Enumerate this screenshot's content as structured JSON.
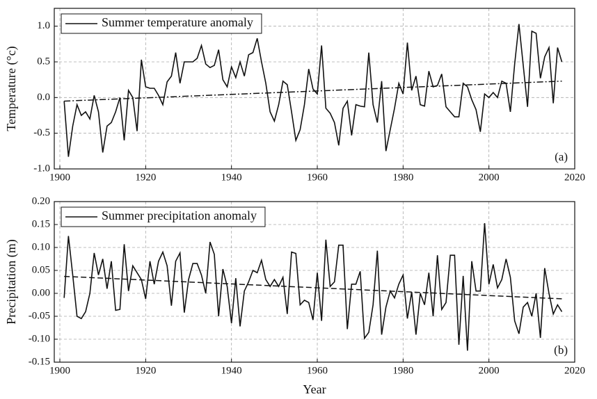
{
  "chart_data": [
    {
      "type": "line",
      "y_label": "Temperature (°c)",
      "annotation": "(a)",
      "x": [
        1901,
        1902,
        1903,
        1904,
        1905,
        1906,
        1907,
        1908,
        1909,
        1910,
        1911,
        1912,
        1913,
        1914,
        1915,
        1916,
        1917,
        1918,
        1919,
        1920,
        1921,
        1922,
        1923,
        1924,
        1925,
        1926,
        1927,
        1928,
        1929,
        1930,
        1931,
        1932,
        1933,
        1934,
        1935,
        1936,
        1937,
        1938,
        1939,
        1940,
        1941,
        1942,
        1943,
        1944,
        1945,
        1946,
        1947,
        1948,
        1949,
        1950,
        1951,
        1952,
        1953,
        1954,
        1955,
        1956,
        1957,
        1958,
        1959,
        1960,
        1961,
        1962,
        1963,
        1964,
        1965,
        1966,
        1967,
        1968,
        1969,
        1970,
        1971,
        1972,
        1973,
        1974,
        1975,
        1976,
        1977,
        1978,
        1979,
        1980,
        1981,
        1982,
        1983,
        1984,
        1985,
        1986,
        1987,
        1988,
        1989,
        1990,
        1991,
        1992,
        1993,
        1994,
        1995,
        1996,
        1997,
        1998,
        1999,
        2000,
        2001,
        2002,
        2003,
        2004,
        2005,
        2006,
        2007,
        2008,
        2009,
        2010,
        2011,
        2012,
        2013,
        2014,
        2015,
        2016,
        2017
      ],
      "series": [
        {
          "name": "Summer temperature anomaly",
          "color": "#111111",
          "values": [
            -0.05,
            -0.83,
            -0.4,
            -0.1,
            -0.25,
            -0.2,
            -0.3,
            0.03,
            -0.2,
            -0.77,
            -0.4,
            -0.35,
            -0.2,
            0.0,
            -0.6,
            0.1,
            0.0,
            -0.47,
            0.53,
            0.15,
            0.13,
            0.13,
            0.03,
            -0.1,
            0.22,
            0.3,
            0.63,
            0.2,
            0.5,
            0.5,
            0.5,
            0.55,
            0.73,
            0.47,
            0.42,
            0.45,
            0.67,
            0.25,
            0.15,
            0.43,
            0.28,
            0.5,
            0.3,
            0.6,
            0.63,
            0.83,
            0.5,
            0.2,
            -0.2,
            -0.33,
            -0.1,
            0.23,
            0.18,
            -0.2,
            -0.6,
            -0.45,
            -0.1,
            0.4,
            0.12,
            0.05,
            0.73,
            -0.15,
            -0.22,
            -0.35,
            -0.67,
            -0.15,
            -0.05,
            -0.53,
            -0.1,
            -0.12,
            -0.13,
            0.63,
            -0.1,
            -0.35,
            0.23,
            -0.75,
            -0.45,
            -0.15,
            0.2,
            0.05,
            0.77,
            0.1,
            0.3,
            -0.1,
            -0.12,
            0.37,
            0.15,
            0.17,
            0.33,
            -0.13,
            -0.2,
            -0.27,
            -0.27,
            0.2,
            0.15,
            -0.03,
            -0.17,
            -0.48,
            0.05,
            0.0,
            0.07,
            0.0,
            0.23,
            0.2,
            -0.2,
            0.47,
            1.03,
            0.45,
            -0.13,
            0.93,
            0.9,
            0.27,
            0.57,
            0.7,
            -0.08,
            0.7,
            0.5
          ]
        }
      ],
      "trend": {
        "x": [
          1901,
          2017
        ],
        "values": [
          -0.05,
          0.23
        ],
        "dash": "9 3 2 3"
      },
      "xlim": [
        1898.7,
        2020
      ],
      "xticks": [
        1900,
        1920,
        1940,
        1960,
        1980,
        2000,
        2020
      ],
      "ylim": [
        -1.0,
        1.25
      ],
      "yticks": [
        {
          "value": 1.0,
          "label": "1.0"
        },
        0.5,
        {
          "value": 0,
          "label": "0.0"
        },
        -0.5,
        {
          "value": -1.0,
          "label": "-1.0"
        }
      ],
      "grid": true
    },
    {
      "type": "line",
      "y_label": "Precipitation (m)",
      "x_label": "Year",
      "annotation": "(b)",
      "x": [
        1901,
        1902,
        1903,
        1904,
        1905,
        1906,
        1907,
        1908,
        1909,
        1910,
        1911,
        1912,
        1913,
        1914,
        1915,
        1916,
        1917,
        1918,
        1919,
        1920,
        1921,
        1922,
        1923,
        1924,
        1925,
        1926,
        1927,
        1928,
        1929,
        1930,
        1931,
        1932,
        1933,
        1934,
        1935,
        1936,
        1937,
        1938,
        1939,
        1940,
        1941,
        1942,
        1943,
        1944,
        1945,
        1946,
        1947,
        1948,
        1949,
        1950,
        1951,
        1952,
        1953,
        1954,
        1955,
        1956,
        1957,
        1958,
        1959,
        1960,
        1961,
        1962,
        1963,
        1964,
        1965,
        1966,
        1967,
        1968,
        1969,
        1970,
        1971,
        1972,
        1973,
        1974,
        1975,
        1976,
        1977,
        1978,
        1979,
        1980,
        1981,
        1982,
        1983,
        1984,
        1985,
        1986,
        1987,
        1988,
        1989,
        1990,
        1991,
        1992,
        1993,
        1994,
        1995,
        1996,
        1997,
        1998,
        1999,
        2000,
        2001,
        2002,
        2003,
        2004,
        2005,
        2006,
        2007,
        2008,
        2009,
        2010,
        2011,
        2012,
        2013,
        2014,
        2015,
        2016,
        2017
      ],
      "series": [
        {
          "name": "Summer precipitation anomaly",
          "color": "#111111",
          "values": [
            -0.01,
            0.125,
            0.04,
            -0.05,
            -0.055,
            -0.04,
            0.0,
            0.088,
            0.04,
            0.075,
            0.01,
            0.07,
            -0.037,
            -0.035,
            0.107,
            0.005,
            0.06,
            0.045,
            0.03,
            -0.012,
            0.07,
            0.02,
            0.07,
            0.09,
            0.06,
            -0.027,
            0.07,
            0.088,
            -0.042,
            0.03,
            0.065,
            0.065,
            0.04,
            0.0,
            0.112,
            0.085,
            -0.05,
            0.053,
            0.015,
            -0.065,
            0.033,
            -0.072,
            0.005,
            0.025,
            0.05,
            0.045,
            0.072,
            0.03,
            0.015,
            0.03,
            0.015,
            0.035,
            -0.045,
            0.09,
            0.087,
            -0.025,
            -0.015,
            -0.02,
            -0.058,
            0.045,
            -0.06,
            0.117,
            0.015,
            0.025,
            0.105,
            0.105,
            -0.078,
            0.02,
            0.02,
            0.048,
            -0.098,
            -0.085,
            -0.025,
            0.093,
            -0.09,
            -0.03,
            0.005,
            -0.01,
            0.02,
            0.04,
            -0.055,
            0.003,
            -0.09,
            0.0,
            -0.025,
            0.045,
            -0.05,
            0.083,
            -0.035,
            -0.02,
            0.083,
            0.083,
            -0.112,
            0.038,
            -0.125,
            0.07,
            0.005,
            0.005,
            0.153,
            0.02,
            0.063,
            0.012,
            0.03,
            0.075,
            0.035,
            -0.06,
            -0.088,
            -0.03,
            -0.02,
            -0.05,
            0.0,
            -0.097,
            0.055,
            0.0,
            -0.045,
            -0.025,
            -0.04
          ]
        }
      ],
      "trend": {
        "x": [
          1901,
          2017
        ],
        "values": [
          0.037,
          -0.012
        ],
        "dash": "8 4"
      },
      "xlim": [
        1898.7,
        2020
      ],
      "xticks": [
        1900,
        1920,
        1940,
        1960,
        1980,
        2000,
        2020
      ],
      "ylim": [
        -0.15,
        0.2
      ],
      "yticks": [
        {
          "value": 0.2,
          "label": "0.20"
        },
        0.15,
        {
          "value": 0.1,
          "label": "0.10"
        },
        0.05,
        {
          "value": 0,
          "label": "0.00"
        },
        -0.05,
        {
          "value": -0.1,
          "label": "-0.10"
        },
        -0.15
      ],
      "grid": true
    }
  ]
}
